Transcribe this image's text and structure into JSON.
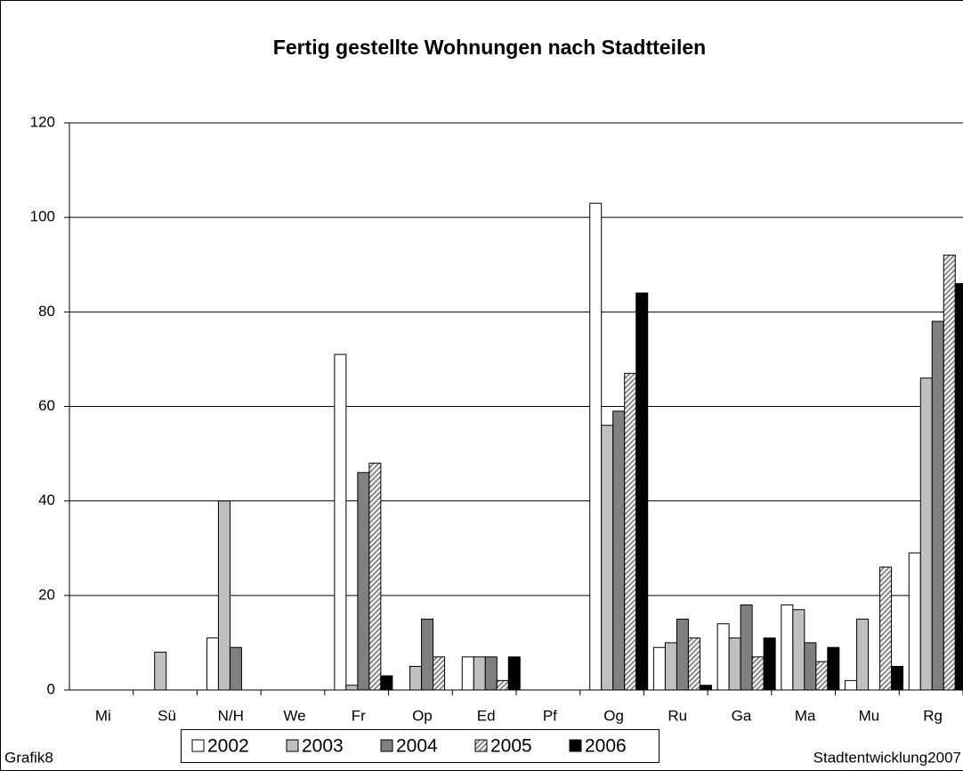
{
  "chart_data": {
    "type": "bar",
    "title": "Fertig gestellte Wohnungen nach Stadtteilen",
    "categories": [
      "Mi",
      "Sü",
      "N/H",
      "We",
      "Fr",
      "Op",
      "Ed",
      "Pf",
      "Og",
      "Ru",
      "Ga",
      "Ma",
      "Mu",
      "Rg"
    ],
    "series": [
      {
        "name": "2002",
        "color": "#ffffff",
        "values": [
          0,
          0,
          11,
          0,
          71,
          0,
          7,
          0,
          103,
          9,
          14,
          18,
          2,
          29
        ]
      },
      {
        "name": "2003",
        "color": "#c0c0c0",
        "values": [
          0,
          8,
          40,
          0,
          1,
          5,
          7,
          0,
          56,
          10,
          11,
          17,
          15,
          66
        ]
      },
      {
        "name": "2004",
        "color": "#808080",
        "values": [
          0,
          0,
          9,
          0,
          46,
          15,
          7,
          0,
          59,
          15,
          18,
          10,
          0,
          78
        ]
      },
      {
        "name": "2005",
        "color": "#b0b0b0",
        "hatch": true,
        "values": [
          0,
          0,
          0,
          0,
          48,
          7,
          2,
          0,
          67,
          11,
          7,
          6,
          26,
          92
        ]
      },
      {
        "name": "2006",
        "color": "#000000",
        "values": [
          0,
          0,
          0,
          0,
          3,
          0,
          7,
          0,
          84,
          1,
          11,
          9,
          5,
          86
        ]
      }
    ],
    "ylim": [
      0,
      120
    ],
    "yticks": [
      0,
      20,
      40,
      60,
      80,
      100,
      120
    ],
    "grid": true,
    "legend": "bottom",
    "footer_left": "Grafik8",
    "footer_right": "Stadtentwicklung2007"
  }
}
